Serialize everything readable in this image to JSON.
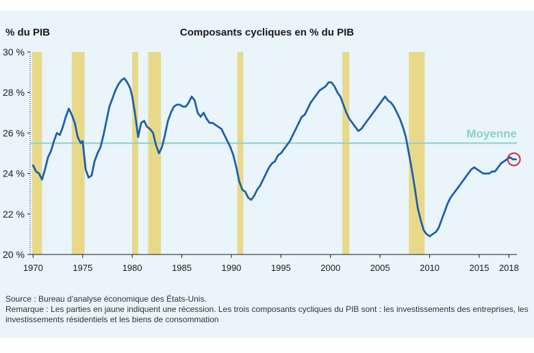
{
  "chart_data": {
    "type": "line",
    "title": "Composants cycliques en % du PIB",
    "ylabel": "% du PIB",
    "xlabel": "",
    "ylim": [
      20,
      30
    ],
    "xlim": [
      1969.7,
      2018.8
    ],
    "yticks": [
      20,
      22,
      24,
      26,
      28,
      30
    ],
    "ytick_labels": [
      "20 %",
      "22 %",
      "24 %",
      "26 %",
      "28 %",
      "30 %"
    ],
    "xticks": [
      1970,
      1975,
      1980,
      1985,
      1990,
      1995,
      2000,
      2005,
      2010,
      2015,
      2018
    ],
    "xtick_labels": [
      "1970",
      "1975",
      "1980",
      "1985",
      "1990",
      "1995",
      "2000",
      "2005",
      "2010",
      "2015",
      "2018"
    ],
    "average": {
      "label": "Moyenne",
      "value": 25.5
    },
    "recessions": [
      [
        1969.9,
        1970.9
      ],
      [
        1973.9,
        1975.2
      ],
      [
        1980.0,
        1980.6
      ],
      [
        1981.6,
        1982.9
      ],
      [
        1990.6,
        1991.2
      ],
      [
        2001.2,
        2001.9
      ],
      [
        2007.9,
        2009.5
      ]
    ],
    "highlight_point": {
      "x": 2018.5,
      "y": 24.7
    },
    "series": [
      {
        "x": [
          1970.0,
          1970.3,
          1970.6,
          1970.9,
          1971.2,
          1971.5,
          1971.8,
          1972.1,
          1972.4,
          1972.7,
          1973.0,
          1973.3,
          1973.6,
          1973.9,
          1974.2,
          1974.5,
          1974.8,
          1975.0,
          1975.3,
          1975.6,
          1975.9,
          1976.2,
          1976.5,
          1976.8,
          1977.1,
          1977.4,
          1977.7,
          1978.0,
          1978.3,
          1978.6,
          1978.9,
          1979.2,
          1979.5,
          1979.8,
          1980.0,
          1980.3,
          1980.6,
          1980.9,
          1981.2,
          1981.5,
          1981.8,
          1982.1,
          1982.4,
          1982.7,
          1983.0,
          1983.3,
          1983.6,
          1983.9,
          1984.2,
          1984.5,
          1984.8,
          1985.1,
          1985.4,
          1985.7,
          1986.0,
          1986.3,
          1986.6,
          1986.9,
          1987.2,
          1987.5,
          1987.8,
          1988.1,
          1988.4,
          1988.7,
          1989.0,
          1989.3,
          1989.6,
          1989.9,
          1990.2,
          1990.5,
          1990.8,
          1991.1,
          1991.4,
          1991.7,
          1992.0,
          1992.3,
          1992.6,
          1992.9,
          1993.2,
          1993.5,
          1993.8,
          1994.1,
          1994.4,
          1994.7,
          1995.0,
          1995.3,
          1995.6,
          1995.9,
          1996.2,
          1996.5,
          1996.8,
          1997.1,
          1997.4,
          1997.7,
          1998.0,
          1998.3,
          1998.6,
          1998.9,
          1999.2,
          1999.5,
          1999.8,
          2000.1,
          2000.4,
          2000.7,
          2001.0,
          2001.3,
          2001.6,
          2001.9,
          2002.2,
          2002.5,
          2002.8,
          2003.1,
          2003.4,
          2003.7,
          2004.0,
          2004.3,
          2004.6,
          2004.9,
          2005.2,
          2005.5,
          2005.8,
          2006.1,
          2006.4,
          2006.7,
          2007.0,
          2007.3,
          2007.6,
          2007.9,
          2008.2,
          2008.5,
          2008.8,
          2009.1,
          2009.4,
          2009.7,
          2010.0,
          2010.3,
          2010.6,
          2010.9,
          2011.2,
          2011.5,
          2011.8,
          2012.1,
          2012.4,
          2012.7,
          2013.0,
          2013.3,
          2013.6,
          2013.9,
          2014.2,
          2014.5,
          2014.8,
          2015.1,
          2015.4,
          2015.7,
          2016.0,
          2016.3,
          2016.6,
          2016.9,
          2017.2,
          2017.5,
          2017.8,
          2018.1,
          2018.4,
          2018.7
        ],
        "y": [
          24.4,
          24.1,
          24.0,
          23.7,
          24.2,
          24.8,
          25.1,
          25.6,
          26.0,
          25.9,
          26.3,
          26.8,
          27.2,
          26.9,
          26.5,
          25.8,
          25.5,
          25.6,
          24.2,
          23.8,
          23.9,
          24.6,
          25.0,
          25.3,
          25.9,
          26.6,
          27.3,
          27.7,
          28.1,
          28.4,
          28.6,
          28.7,
          28.5,
          28.2,
          27.8,
          26.9,
          25.8,
          26.5,
          26.6,
          26.3,
          26.2,
          26.0,
          25.4,
          25.0,
          25.3,
          25.9,
          26.6,
          27.0,
          27.3,
          27.4,
          27.4,
          27.3,
          27.3,
          27.5,
          27.8,
          27.6,
          27.0,
          26.8,
          27.0,
          26.7,
          26.5,
          26.5,
          26.4,
          26.3,
          26.2,
          25.9,
          25.6,
          25.3,
          24.9,
          24.3,
          23.6,
          23.2,
          23.1,
          22.8,
          22.7,
          22.9,
          23.2,
          23.4,
          23.7,
          24.0,
          24.3,
          24.5,
          24.6,
          24.9,
          25.0,
          25.2,
          25.4,
          25.6,
          25.9,
          26.2,
          26.5,
          26.8,
          26.9,
          27.2,
          27.5,
          27.7,
          27.9,
          28.1,
          28.2,
          28.3,
          28.5,
          28.5,
          28.3,
          28.0,
          27.8,
          27.4,
          27.0,
          26.7,
          26.5,
          26.3,
          26.1,
          26.2,
          26.4,
          26.6,
          26.8,
          27.0,
          27.2,
          27.4,
          27.6,
          27.8,
          27.6,
          27.5,
          27.3,
          27.0,
          26.7,
          26.3,
          25.8,
          25.0,
          24.2,
          23.3,
          22.3,
          21.7,
          21.2,
          21.0,
          20.9,
          21.0,
          21.1,
          21.3,
          21.7,
          22.1,
          22.5,
          22.8,
          23.0,
          23.2,
          23.4,
          23.6,
          23.8,
          24.0,
          24.2,
          24.3,
          24.2,
          24.1,
          24.0,
          24.0,
          24.0,
          24.1,
          24.1,
          24.3,
          24.5,
          24.6,
          24.7,
          24.8,
          24.7,
          24.7
        ]
      }
    ]
  },
  "footnotes": {
    "source": "Source : Bureau d'analyse économique des États-Unis.",
    "remark": "Remarque : Les parties en jaune indiquent une récession. Les trois composants cycliques du PIB sont : les investissements des entreprises, les investissements résidentiels et les biens de consommation"
  },
  "colors": {
    "background": "#e9f4fb",
    "recession": "#e8d98a",
    "line": "#1f5fa8",
    "average": "#8fcfc9",
    "average_label": "#8fcfc9",
    "highlight_circle": "#d42a2a"
  }
}
